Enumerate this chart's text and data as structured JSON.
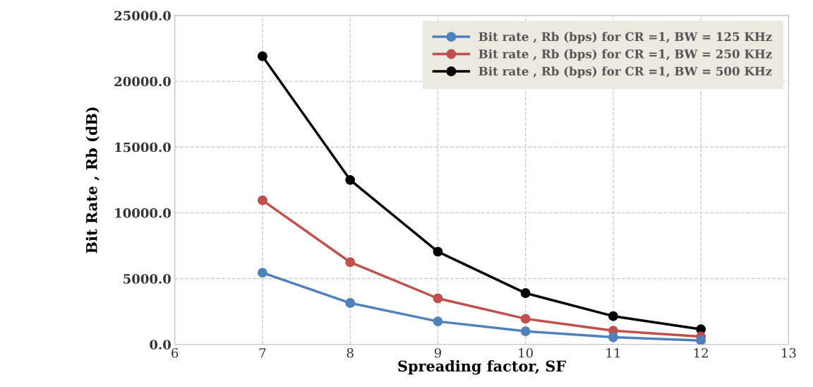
{
  "chart_data": {
    "type": "line",
    "xlabel": "Spreading factor, SF",
    "ylabel": "Bit Rate , Rb (dB)",
    "x": [
      7,
      8,
      9,
      10,
      11,
      12
    ],
    "series": [
      {
        "name": "Bit rate , Rb (bps) for CR =1, BW = 125 KHz",
        "color": "#4f81bd",
        "values": [
          5450,
          3150,
          1750,
          1000,
          550,
          300
        ]
      },
      {
        "name": "Bit rate , Rb (bps) for CR =1, BW = 250 KHz",
        "color": "#c0504d",
        "values": [
          10950,
          6250,
          3500,
          1950,
          1050,
          600
        ]
      },
      {
        "name": "Bit rate , Rb (bps) for CR =1, BW = 500 KHz",
        "color": "#000000",
        "values": [
          21900,
          12500,
          7050,
          3900,
          2150,
          1150
        ]
      }
    ],
    "xlim": [
      6,
      13
    ],
    "xticks": [
      6,
      7,
      8,
      9,
      10,
      11,
      12,
      13
    ],
    "ylim": [
      0,
      25000
    ],
    "yticks": [
      {
        "value": 0,
        "label": "0.0"
      },
      {
        "value": 5000,
        "label": "5000.0"
      },
      {
        "value": 10000,
        "label": "10000.0"
      },
      {
        "value": 15000,
        "label": "15000.0"
      },
      {
        "value": 20000,
        "label": "20000.0"
      },
      {
        "value": 25000,
        "label": "25000.0"
      }
    ],
    "grid": true,
    "legend": "top right",
    "marker": "circle",
    "line_style": "solid"
  }
}
